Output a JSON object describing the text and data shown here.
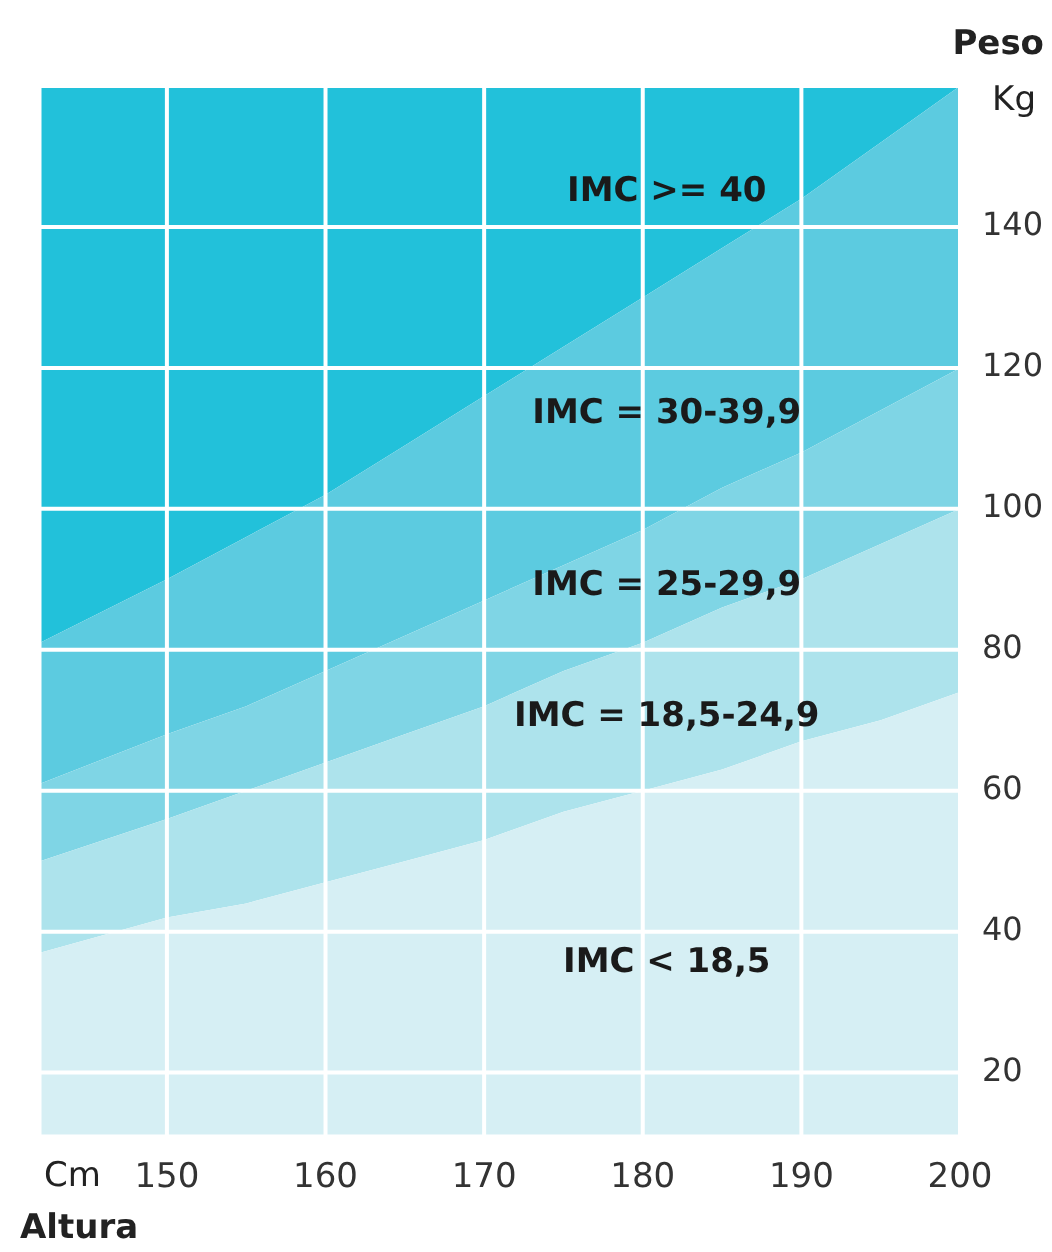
{
  "chart_data": {
    "type": "area",
    "xlabel": "Altura",
    "ylabel": "Peso",
    "x": [
      142,
      150,
      155,
      160,
      165,
      170,
      175,
      180,
      185,
      190,
      195,
      200
    ],
    "xlim": [
      142,
      200
    ],
    "xticks": [
      150,
      160,
      170,
      180,
      190,
      200
    ],
    "ylim": [
      11,
      160
    ],
    "yticks": [
      20,
      40,
      60,
      80,
      100,
      120,
      140,
      {
        "value": 160,
        "label": null
      }
    ],
    "grid": true,
    "series": [
      {
        "name": "IMC < 18,5",
        "color": "#d6eff4",
        "values": [
          37,
          42,
          44,
          47,
          50,
          53,
          57,
          60,
          63,
          67,
          70,
          74
        ]
      },
      {
        "name": "IMC = 18,5-24,9",
        "color": "#ade3ec",
        "values": [
          50,
          56,
          60,
          64,
          68,
          72,
          77,
          81,
          86,
          90,
          95,
          100
        ]
      },
      {
        "name": "IMC = 25-29,9",
        "color": "#7fd5e5",
        "values": [
          61,
          68,
          72,
          77,
          82,
          87,
          92,
          97,
          103,
          108,
          114,
          120
        ]
      },
      {
        "name": "IMC = 30-39,9",
        "color": "#5ccbe0",
        "values": [
          81,
          90,
          96,
          102,
          109,
          116,
          123,
          130,
          137,
          144,
          152,
          160
        ]
      },
      {
        "name": "IMC >= 40",
        "color": "#22c1da",
        "values": [
          160,
          160,
          160,
          160,
          160,
          160,
          160,
          160,
          160,
          160,
          160,
          160
        ]
      }
    ],
    "annotations": [
      "Kg",
      "Cm"
    ]
  }
}
